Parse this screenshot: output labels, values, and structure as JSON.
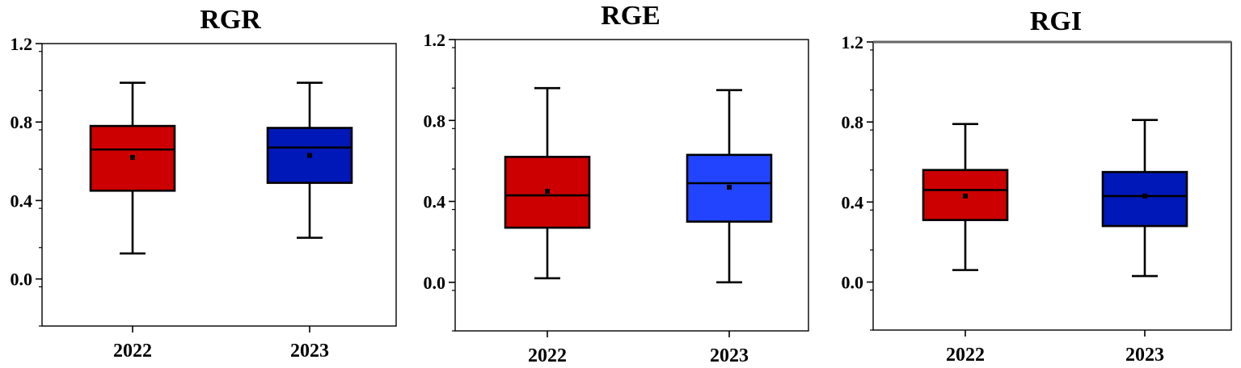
{
  "chart_data": [
    {
      "type": "box",
      "title": "RGR",
      "categories": [
        "2022",
        "2023"
      ],
      "ylim": [
        -0.24,
        1.2
      ],
      "yticks": [
        0.0,
        0.4,
        0.8,
        1.2
      ],
      "ytick_labels": [
        "0.0",
        "0.4",
        "0.8",
        "1.2"
      ],
      "boxes": [
        {
          "category": "2022",
          "min": 0.13,
          "q1": 0.45,
          "median": 0.66,
          "mean": 0.62,
          "q3": 0.78,
          "max": 1.0,
          "color": "#cc0000"
        },
        {
          "category": "2023",
          "min": 0.21,
          "q1": 0.49,
          "median": 0.67,
          "mean": 0.63,
          "q3": 0.77,
          "max": 1.0,
          "color": "#0018b8"
        }
      ]
    },
    {
      "type": "box",
      "title": "RGE",
      "categories": [
        "2022",
        "2023"
      ],
      "ylim": [
        -0.24,
        1.2
      ],
      "yticks": [
        0.0,
        0.4,
        0.8,
        1.2
      ],
      "ytick_labels": [
        "0.0",
        "0.4",
        "0.8",
        "1.2"
      ],
      "boxes": [
        {
          "category": "2022",
          "min": 0.02,
          "q1": 0.27,
          "median": 0.43,
          "mean": 0.45,
          "q3": 0.62,
          "max": 0.96,
          "color": "#cc0000"
        },
        {
          "category": "2023",
          "min": 0.0,
          "q1": 0.3,
          "median": 0.49,
          "mean": 0.47,
          "q3": 0.63,
          "max": 0.95,
          "color": "#2244ff"
        }
      ]
    },
    {
      "type": "box",
      "title": "RGI",
      "categories": [
        "2022",
        "2023"
      ],
      "ylim": [
        -0.24,
        1.2
      ],
      "yticks": [
        0.0,
        0.4,
        0.8,
        1.2
      ],
      "ytick_labels": [
        "0.0",
        "0.4",
        "0.8",
        "1.2"
      ],
      "boxes": [
        {
          "category": "2022",
          "min": 0.06,
          "q1": 0.31,
          "median": 0.46,
          "mean": 0.43,
          "q3": 0.56,
          "max": 0.79,
          "color": "#cc0000"
        },
        {
          "category": "2023",
          "min": 0.03,
          "q1": 0.28,
          "median": 0.43,
          "mean": 0.43,
          "q3": 0.55,
          "max": 0.81,
          "color": "#0018b8"
        }
      ]
    }
  ]
}
